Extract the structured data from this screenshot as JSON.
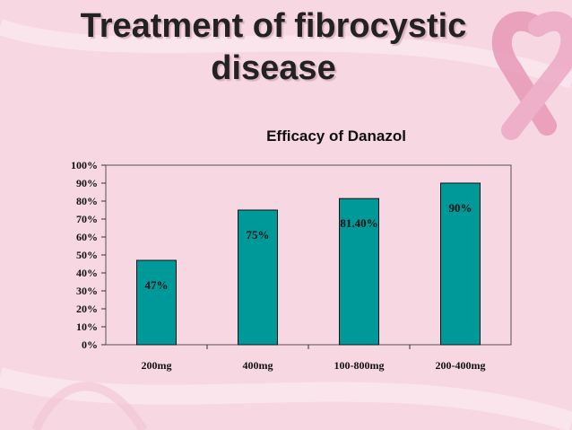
{
  "slide": {
    "title_line1": "Treatment of fibrocystic",
    "title_line2": "disease"
  },
  "colors": {
    "background": "#f6d7e2",
    "bar": "#009999",
    "ribbon": "#e8a0bb"
  },
  "decoration": {
    "ribbon_icon": "pink-awareness-ribbon-icon"
  },
  "chart_data": {
    "type": "bar",
    "title": "Efficacy of Danazol",
    "categories": [
      "200mg",
      "400mg",
      "100-800mg",
      "200-400mg"
    ],
    "values": [
      47,
      75,
      81.4,
      90
    ],
    "data_labels": [
      "47%",
      "75%",
      "81.40%",
      "90%"
    ],
    "y_ticks": [
      "0%",
      "10%",
      "20%",
      "30%",
      "40%",
      "50%",
      "60%",
      "70%",
      "80%",
      "90%",
      "100%"
    ],
    "ylim": [
      0,
      100
    ],
    "xlabel": "",
    "ylabel": "",
    "grid": false,
    "legend": "none"
  }
}
